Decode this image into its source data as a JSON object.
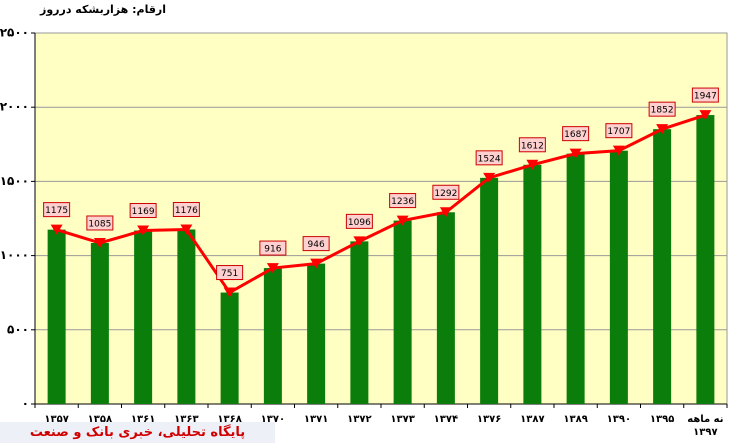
{
  "chart_data": {
    "type": "bar_line",
    "title": "ارقام: هزاربشکه درروز",
    "source": "پایگاه تحلیلی، خبری بانک و صنعت",
    "categories": [
      "۱۳۵۷",
      "۱۳۵۸",
      "۱۳۶۱",
      "۱۳۶۳",
      "۱۳۶۸",
      "۱۳۷۰",
      "۱۳۷۱",
      "۱۳۷۲",
      "۱۳۷۳",
      "۱۳۷۴",
      "۱۳۷۶",
      "۱۳۸۷",
      "۱۳۸۹",
      "۱۳۹۰",
      "۱۳۹۵",
      "نه ماهه ۱۳۹۷"
    ],
    "values": [
      1175,
      1085,
      1169,
      1176,
      751,
      916,
      946,
      1096,
      1236,
      1292,
      1524,
      1612,
      1687,
      1707,
      1852,
      1947
    ],
    "bar_color": "#0b7d0b",
    "line_color": "#ff0000",
    "ylim": [
      0,
      2500
    ],
    "yticks": [
      {
        "value": 0,
        "label": "۰"
      },
      {
        "value": 500,
        "label": "۵۰۰"
      },
      {
        "value": 1000,
        "label": "۱۰۰۰"
      },
      {
        "value": 1500,
        "label": "۱۵۰۰"
      },
      {
        "value": 2000,
        "label": "۲۰۰۰"
      },
      {
        "value": 2500,
        "label": "۲۵۰۰"
      }
    ],
    "grid": true
  }
}
